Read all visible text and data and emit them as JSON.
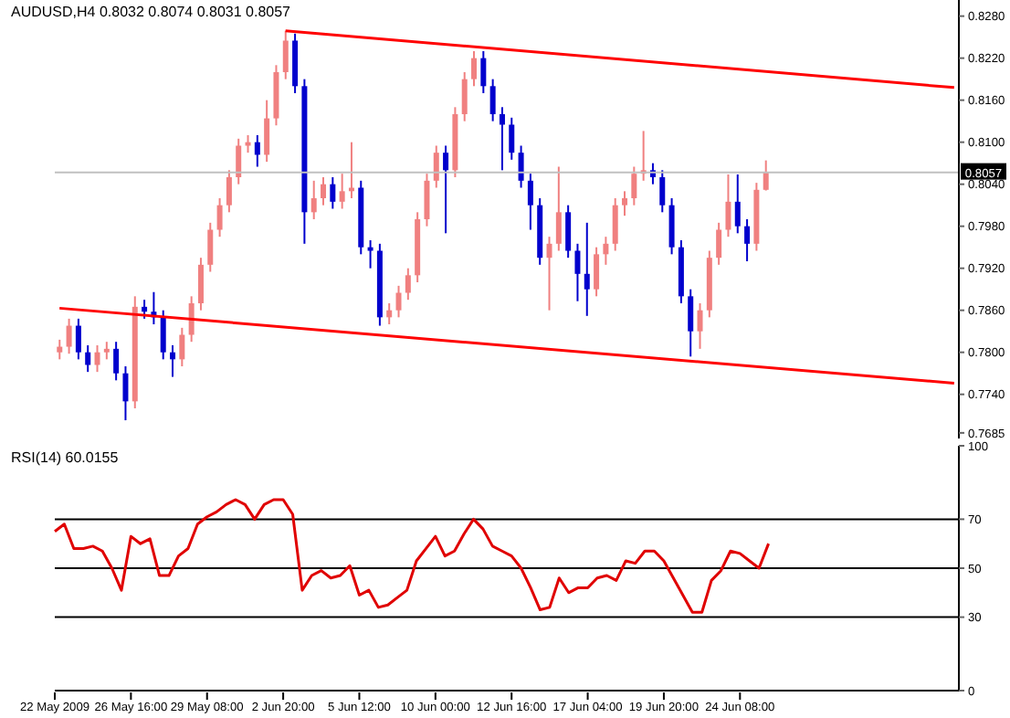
{
  "chart_data": [
    {
      "type": "candlestick",
      "title": "AUDUSD,H4  0.8032 0.8074 0.8031 0.8057",
      "categories": [
        null,
        null,
        null,
        null,
        null,
        null,
        null,
        null,
        null,
        null,
        null,
        null,
        null,
        null,
        null,
        null,
        null,
        null,
        null,
        null,
        null,
        null,
        null,
        null,
        null,
        null,
        null,
        null,
        null,
        null,
        null,
        null,
        null,
        null,
        null,
        null,
        null,
        null,
        null,
        null,
        null,
        null,
        null,
        null,
        null,
        null,
        null,
        null,
        null,
        null,
        null,
        null,
        null,
        null,
        null,
        null,
        null,
        null,
        null,
        null,
        null,
        null,
        null,
        null,
        null,
        null,
        null,
        null,
        null,
        null,
        null,
        null,
        null,
        null,
        null,
        null,
        null,
        null,
        null,
        null,
        null,
        null,
        null,
        null,
        null,
        null,
        null,
        null,
        null,
        null,
        null,
        null,
        null,
        null,
        null,
        null
      ],
      "ohlc": [
        [
          0.78,
          0.7818,
          0.779,
          0.7808
        ],
        [
          0.7808,
          0.7848,
          0.7798,
          0.7838
        ],
        [
          0.7838,
          0.7848,
          0.779,
          0.78
        ],
        [
          0.78,
          0.781,
          0.7772,
          0.7782
        ],
        [
          0.7782,
          0.781,
          0.7772,
          0.78
        ],
        [
          0.78,
          0.7815,
          0.779,
          0.7805
        ],
        [
          0.7805,
          0.7815,
          0.776,
          0.777
        ],
        [
          0.777,
          0.778,
          0.7703,
          0.773
        ],
        [
          0.773,
          0.788,
          0.772,
          0.7865
        ],
        [
          0.7865,
          0.7875,
          0.7848,
          0.7858
        ],
        [
          0.7858,
          0.7886,
          0.784,
          0.785
        ],
        [
          0.785,
          0.786,
          0.779,
          0.78
        ],
        [
          0.78,
          0.781,
          0.7765,
          0.779
        ],
        [
          0.779,
          0.7835,
          0.778,
          0.7825
        ],
        [
          0.7825,
          0.788,
          0.7815,
          0.787
        ],
        [
          0.787,
          0.7935,
          0.786,
          0.7925
        ],
        [
          0.7925,
          0.7985,
          0.7915,
          0.7975
        ],
        [
          0.7975,
          0.802,
          0.7965,
          0.801
        ],
        [
          0.801,
          0.806,
          0.8,
          0.805
        ],
        [
          0.805,
          0.8105,
          0.804,
          0.8095
        ],
        [
          0.8095,
          0.811,
          0.8085,
          0.81
        ],
        [
          0.81,
          0.811,
          0.8065,
          0.8082
        ],
        [
          0.8082,
          0.816,
          0.8072,
          0.8134
        ],
        [
          0.8134,
          0.821,
          0.8124,
          0.82
        ],
        [
          0.82,
          0.8259,
          0.819,
          0.8245
        ],
        [
          0.8245,
          0.8255,
          0.817,
          0.818
        ],
        [
          0.818,
          0.819,
          0.7955,
          0.8
        ],
        [
          0.8,
          0.8045,
          0.799,
          0.802
        ],
        [
          0.802,
          0.805,
          0.801,
          0.804
        ],
        [
          0.804,
          0.805,
          0.8005,
          0.8015
        ],
        [
          0.8015,
          0.8055,
          0.8005,
          0.803
        ],
        [
          0.803,
          0.81,
          0.802,
          0.8035
        ],
        [
          0.8035,
          0.8045,
          0.794,
          0.795
        ],
        [
          0.795,
          0.796,
          0.792,
          0.7945
        ],
        [
          0.7945,
          0.7955,
          0.7838,
          0.785
        ],
        [
          0.785,
          0.787,
          0.784,
          0.786
        ],
        [
          0.786,
          0.7895,
          0.785,
          0.7885
        ],
        [
          0.7885,
          0.792,
          0.7875,
          0.791
        ],
        [
          0.791,
          0.8,
          0.79,
          0.799
        ],
        [
          0.799,
          0.8055,
          0.798,
          0.8045
        ],
        [
          0.8045,
          0.8095,
          0.8035,
          0.8085
        ],
        [
          0.8085,
          0.8095,
          0.797,
          0.806
        ],
        [
          0.806,
          0.815,
          0.805,
          0.814
        ],
        [
          0.814,
          0.82,
          0.813,
          0.819
        ],
        [
          0.819,
          0.823,
          0.818,
          0.822
        ],
        [
          0.822,
          0.823,
          0.817,
          0.818
        ],
        [
          0.818,
          0.819,
          0.813,
          0.814
        ],
        [
          0.814,
          0.815,
          0.806,
          0.8125
        ],
        [
          0.8125,
          0.8135,
          0.8075,
          0.8085
        ],
        [
          0.8085,
          0.8095,
          0.8035,
          0.8045
        ],
        [
          0.8045,
          0.8055,
          0.7975,
          0.801
        ],
        [
          0.801,
          0.802,
          0.7925,
          0.7935
        ],
        [
          0.7935,
          0.7965,
          0.786,
          0.7955
        ],
        [
          0.7955,
          0.8065,
          0.7945,
          0.8
        ],
        [
          0.8,
          0.801,
          0.7935,
          0.7945
        ],
        [
          0.7945,
          0.7955,
          0.7873,
          0.7912
        ],
        [
          0.7912,
          0.7985,
          0.7852,
          0.789
        ],
        [
          0.789,
          0.795,
          0.788,
          0.794
        ],
        [
          0.794,
          0.7965,
          0.7925,
          0.7955
        ],
        [
          0.7955,
          0.802,
          0.7945,
          0.801
        ],
        [
          0.801,
          0.803,
          0.7995,
          0.802
        ],
        [
          0.802,
          0.8065,
          0.801,
          0.8055
        ],
        [
          0.8055,
          0.8116,
          0.8045,
          0.806
        ],
        [
          0.806,
          0.807,
          0.804,
          0.805
        ],
        [
          0.805,
          0.806,
          0.8,
          0.801
        ],
        [
          0.801,
          0.802,
          0.794,
          0.795
        ],
        [
          0.795,
          0.796,
          0.787,
          0.788
        ],
        [
          0.788,
          0.789,
          0.7794,
          0.783
        ],
        [
          0.783,
          0.787,
          0.7805,
          0.786
        ],
        [
          0.786,
          0.7945,
          0.785,
          0.7935
        ],
        [
          0.7935,
          0.7985,
          0.7925,
          0.7975
        ],
        [
          0.7975,
          0.8054,
          0.7965,
          0.8015
        ],
        [
          0.8015,
          0.8054,
          0.797,
          0.798
        ],
        [
          0.798,
          0.799,
          0.793,
          0.7955
        ],
        [
          0.7955,
          0.8042,
          0.7945,
          0.8032
        ],
        [
          0.8032,
          0.8074,
          0.8031,
          0.8057
        ],
        null,
        null,
        null,
        null,
        null,
        null,
        null,
        null,
        null,
        null,
        null,
        null,
        null,
        null,
        null,
        null,
        null,
        null,
        null,
        null
      ],
      "colors": [
        "#f08080",
        "#f08080",
        "#0000cd",
        "#0000cd",
        "#f08080",
        "#f08080",
        "#0000cd",
        "#0000cd",
        "#f08080",
        "#0000cd",
        "#0000cd",
        "#0000cd",
        "#0000cd",
        "#f08080",
        "#f08080",
        "#f08080",
        "#f08080",
        "#f08080",
        "#f08080",
        "#f08080",
        "#f08080",
        "#0000cd",
        "#f08080",
        "#f08080",
        "#f08080",
        "#0000cd",
        "#0000cd",
        "#f08080",
        "#f08080",
        "#0000cd",
        "#f08080",
        "#f08080",
        "#0000cd",
        "#0000cd",
        "#0000cd",
        "#f08080",
        "#f08080",
        "#f08080",
        "#f08080",
        "#f08080",
        "#f08080",
        "#0000cd",
        "#f08080",
        "#f08080",
        "#f08080",
        "#0000cd",
        "#0000cd",
        "#0000cd",
        "#0000cd",
        "#0000cd",
        "#0000cd",
        "#0000cd",
        "#f08080",
        "#f08080",
        "#0000cd",
        "#0000cd",
        "#0000cd",
        "#f08080",
        "#f08080",
        "#f08080",
        "#f08080",
        "#f08080",
        "#f08080",
        "#0000cd",
        "#0000cd",
        "#0000cd",
        "#0000cd",
        "#0000cd",
        "#f08080",
        "#f08080",
        "#f08080",
        "#f08080",
        "#0000cd",
        "#0000cd",
        "#f08080",
        "#f08080",
        null,
        null,
        null,
        null,
        null,
        null,
        null,
        null,
        null,
        null,
        null,
        null,
        null,
        null,
        null,
        null,
        null,
        null,
        null,
        null
      ],
      "series": [
        {
          "type": "line",
          "color": "#ff0000",
          "values": [
            null,
            null,
            null,
            null,
            null,
            null,
            null,
            null,
            null,
            null,
            null,
            null,
            null,
            null,
            null,
            null,
            null,
            null,
            null,
            null,
            null,
            null,
            null,
            null,
            0.8259,
            null,
            null,
            null,
            null,
            null,
            null,
            null,
            null,
            null,
            null,
            null,
            null,
            null,
            null,
            null,
            null,
            null,
            null,
            null,
            null,
            null,
            null,
            null,
            null,
            null,
            null,
            null,
            null,
            null,
            null,
            null,
            null,
            null,
            null,
            null,
            null,
            null,
            null,
            null,
            null,
            null,
            null,
            null,
            null,
            null,
            null,
            null,
            null,
            null,
            null,
            null,
            null,
            null,
            null,
            null,
            null,
            null,
            null,
            null,
            null,
            null,
            null,
            null,
            null,
            null,
            null,
            null,
            null,
            null,
            null,
            0.8178
          ]
        },
        {
          "type": "line",
          "color": "#ff0000",
          "values": [
            0.7863,
            null,
            null,
            null,
            null,
            null,
            null,
            null,
            null,
            null,
            null,
            null,
            null,
            null,
            null,
            null,
            null,
            null,
            null,
            null,
            null,
            null,
            null,
            null,
            null,
            null,
            null,
            null,
            null,
            null,
            null,
            null,
            null,
            null,
            null,
            null,
            null,
            null,
            null,
            null,
            null,
            null,
            null,
            null,
            null,
            null,
            null,
            null,
            null,
            null,
            null,
            null,
            null,
            null,
            null,
            null,
            null,
            null,
            null,
            null,
            null,
            null,
            null,
            null,
            null,
            null,
            null,
            null,
            null,
            null,
            null,
            null,
            null,
            null,
            null,
            null,
            null,
            null,
            null,
            null,
            null,
            null,
            null,
            null,
            null,
            null,
            null,
            null,
            null,
            null,
            null,
            null,
            null,
            null,
            null,
            0.7756
          ]
        }
      ],
      "ylim": [
        0.7677,
        0.8303
      ],
      "yticks": [
        {
          "value": 0.828,
          "label": "0.8280"
        },
        {
          "value": 0.822,
          "label": "0.8220"
        },
        {
          "value": 0.816,
          "label": "0.8160"
        },
        {
          "value": 0.81,
          "label": "0.8100"
        },
        {
          "value": 0.804,
          "label": "0.8040"
        },
        {
          "value": 0.798,
          "label": "0.7980"
        },
        {
          "value": 0.792,
          "label": "0.7920"
        },
        {
          "value": 0.786,
          "label": "0.7860"
        },
        {
          "value": 0.78,
          "label": "0.7800"
        },
        {
          "value": 0.774,
          "label": "0.7740"
        },
        {
          "value": 0.7685,
          "label": "0.7685"
        }
      ],
      "ref_lines": [
        {
          "axis": "y",
          "value": 0.8057,
          "label": "0.8057",
          "color": "#c0c0c0"
        }
      ],
      "tick_labels": "y"
    },
    {
      "type": "line",
      "title": "RSI(14) 60.0155",
      "categories": [
        "22 May 2009",
        null,
        null,
        null,
        null,
        null,
        null,
        null,
        "26 May 16:00",
        null,
        null,
        null,
        null,
        null,
        null,
        null,
        "29 May 08:00",
        null,
        null,
        null,
        null,
        null,
        null,
        null,
        "2 Jun 20:00",
        null,
        null,
        null,
        null,
        null,
        null,
        null,
        "5 Jun 12:00",
        null,
        null,
        null,
        null,
        null,
        null,
        null,
        "10 Jun 00:00",
        null,
        null,
        null,
        null,
        null,
        null,
        null,
        "12 Jun 16:00",
        null,
        null,
        null,
        null,
        null,
        null,
        null,
        "17 Jun 04:00",
        null,
        null,
        null,
        null,
        null,
        null,
        null,
        "19 Jun 20:00",
        null,
        null,
        null,
        null,
        null,
        null,
        null,
        "24 Jun 08:00",
        null,
        null,
        null,
        null,
        null,
        null,
        null,
        null,
        null,
        null,
        null,
        null,
        null,
        null,
        null,
        null,
        null,
        null,
        null,
        null,
        null,
        null,
        null
      ],
      "series": [
        {
          "color": "#e00000",
          "values": [
            65,
            68,
            58,
            58,
            59,
            57,
            50,
            41,
            63,
            60,
            62,
            47,
            47,
            55,
            58,
            68,
            71,
            73,
            76,
            78,
            76,
            70,
            76,
            78,
            78,
            72,
            41,
            47,
            49,
            46,
            47,
            51,
            39,
            41,
            34,
            35,
            38,
            41,
            53,
            58,
            63,
            55,
            57,
            64,
            70,
            66,
            59,
            57,
            55,
            50,
            42,
            33,
            34,
            46,
            40,
            42,
            42,
            46,
            47,
            45,
            53,
            52,
            57,
            57,
            53,
            46,
            39,
            32,
            32,
            45,
            49,
            57,
            56,
            53,
            50,
            60.0155,
            null,
            null,
            null,
            null,
            null,
            null,
            null,
            null,
            null,
            null,
            null,
            null,
            null,
            null,
            null,
            null,
            null,
            null,
            null,
            null
          ]
        }
      ],
      "ylim": [
        0,
        100
      ],
      "yticks": [
        0,
        30,
        50,
        70,
        100
      ],
      "ref_lines": [
        {
          "axis": "y",
          "value": 70,
          "color": "#000000"
        },
        {
          "axis": "y",
          "value": 50,
          "color": "#000000"
        },
        {
          "axis": "y",
          "value": 30,
          "color": "#000000"
        }
      ]
    }
  ]
}
